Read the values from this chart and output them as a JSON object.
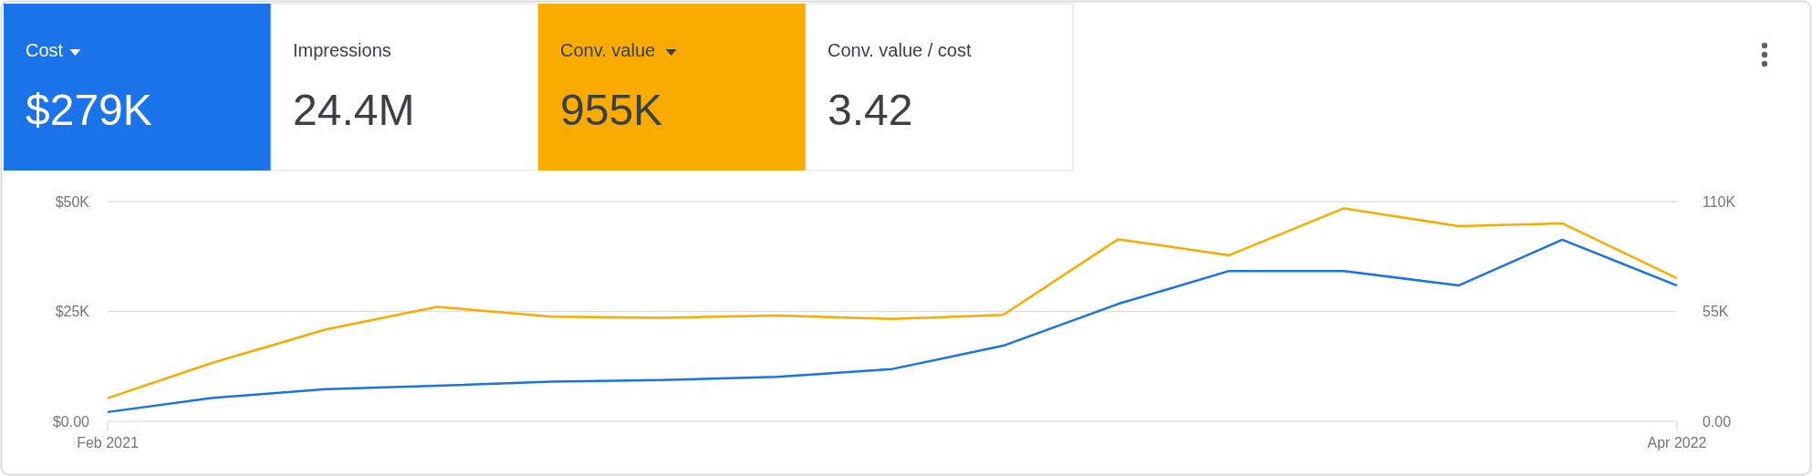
{
  "chart_data": [
    {
      "type": "other",
      "categories": [
        "Cost",
        "Impressions",
        "Conv. value",
        "Conv. value / cost"
      ],
      "value_labels": [
        "$279K",
        "24.4M",
        "955K",
        "3.42"
      ],
      "colors": [
        "#1a73e8",
        null,
        "#f9ab00",
        null
      ]
    },
    {
      "type": "line",
      "x": [
        "2021-02",
        "2021-03",
        "2021-04",
        "2021-05",
        "2021-06",
        "2021-07",
        "2021-08",
        "2021-09",
        "2021-10",
        "2021-11",
        "2021-12",
        "2022-01",
        "2022-02",
        "2022-03",
        "2022-04"
      ],
      "series": [
        {
          "color": "#f9ab00",
          "axis": "y2",
          "values": [
            11600,
            29100,
            46000,
            57300,
            52400,
            51800,
            53000,
            51200,
            53300,
            91100,
            83100,
            106600,
            97700,
            99100,
            71600
          ]
        },
        {
          "color": "#1a73e8",
          "values": [
            2100,
            5300,
            7300,
            8100,
            9000,
            9400,
            10100,
            11900,
            17200,
            26700,
            34200,
            34200,
            30900,
            41300,
            30900
          ]
        }
      ],
      "xlim": [
        "2021-02",
        "2022-04"
      ],
      "xticks": [
        {
          "value": "2021-02",
          "label": "Feb 2021"
        },
        {
          "value": "2022-04",
          "label": "Apr 2022"
        }
      ],
      "ylim": [
        0,
        50000
      ],
      "yticks": [
        {
          "value": 0,
          "label": "$0.00"
        },
        {
          "value": 25000,
          "label": "$25K"
        },
        {
          "value": 50000,
          "label": "$50K"
        }
      ],
      "y2lim": [
        0,
        110000
      ],
      "y2ticks": [
        {
          "value": 0,
          "label": "0.00"
        },
        {
          "value": 55000,
          "label": "55K"
        },
        {
          "value": 110000,
          "label": "110K"
        }
      ],
      "grid": "y",
      "marker": "none",
      "line_style": "solid"
    }
  ]
}
